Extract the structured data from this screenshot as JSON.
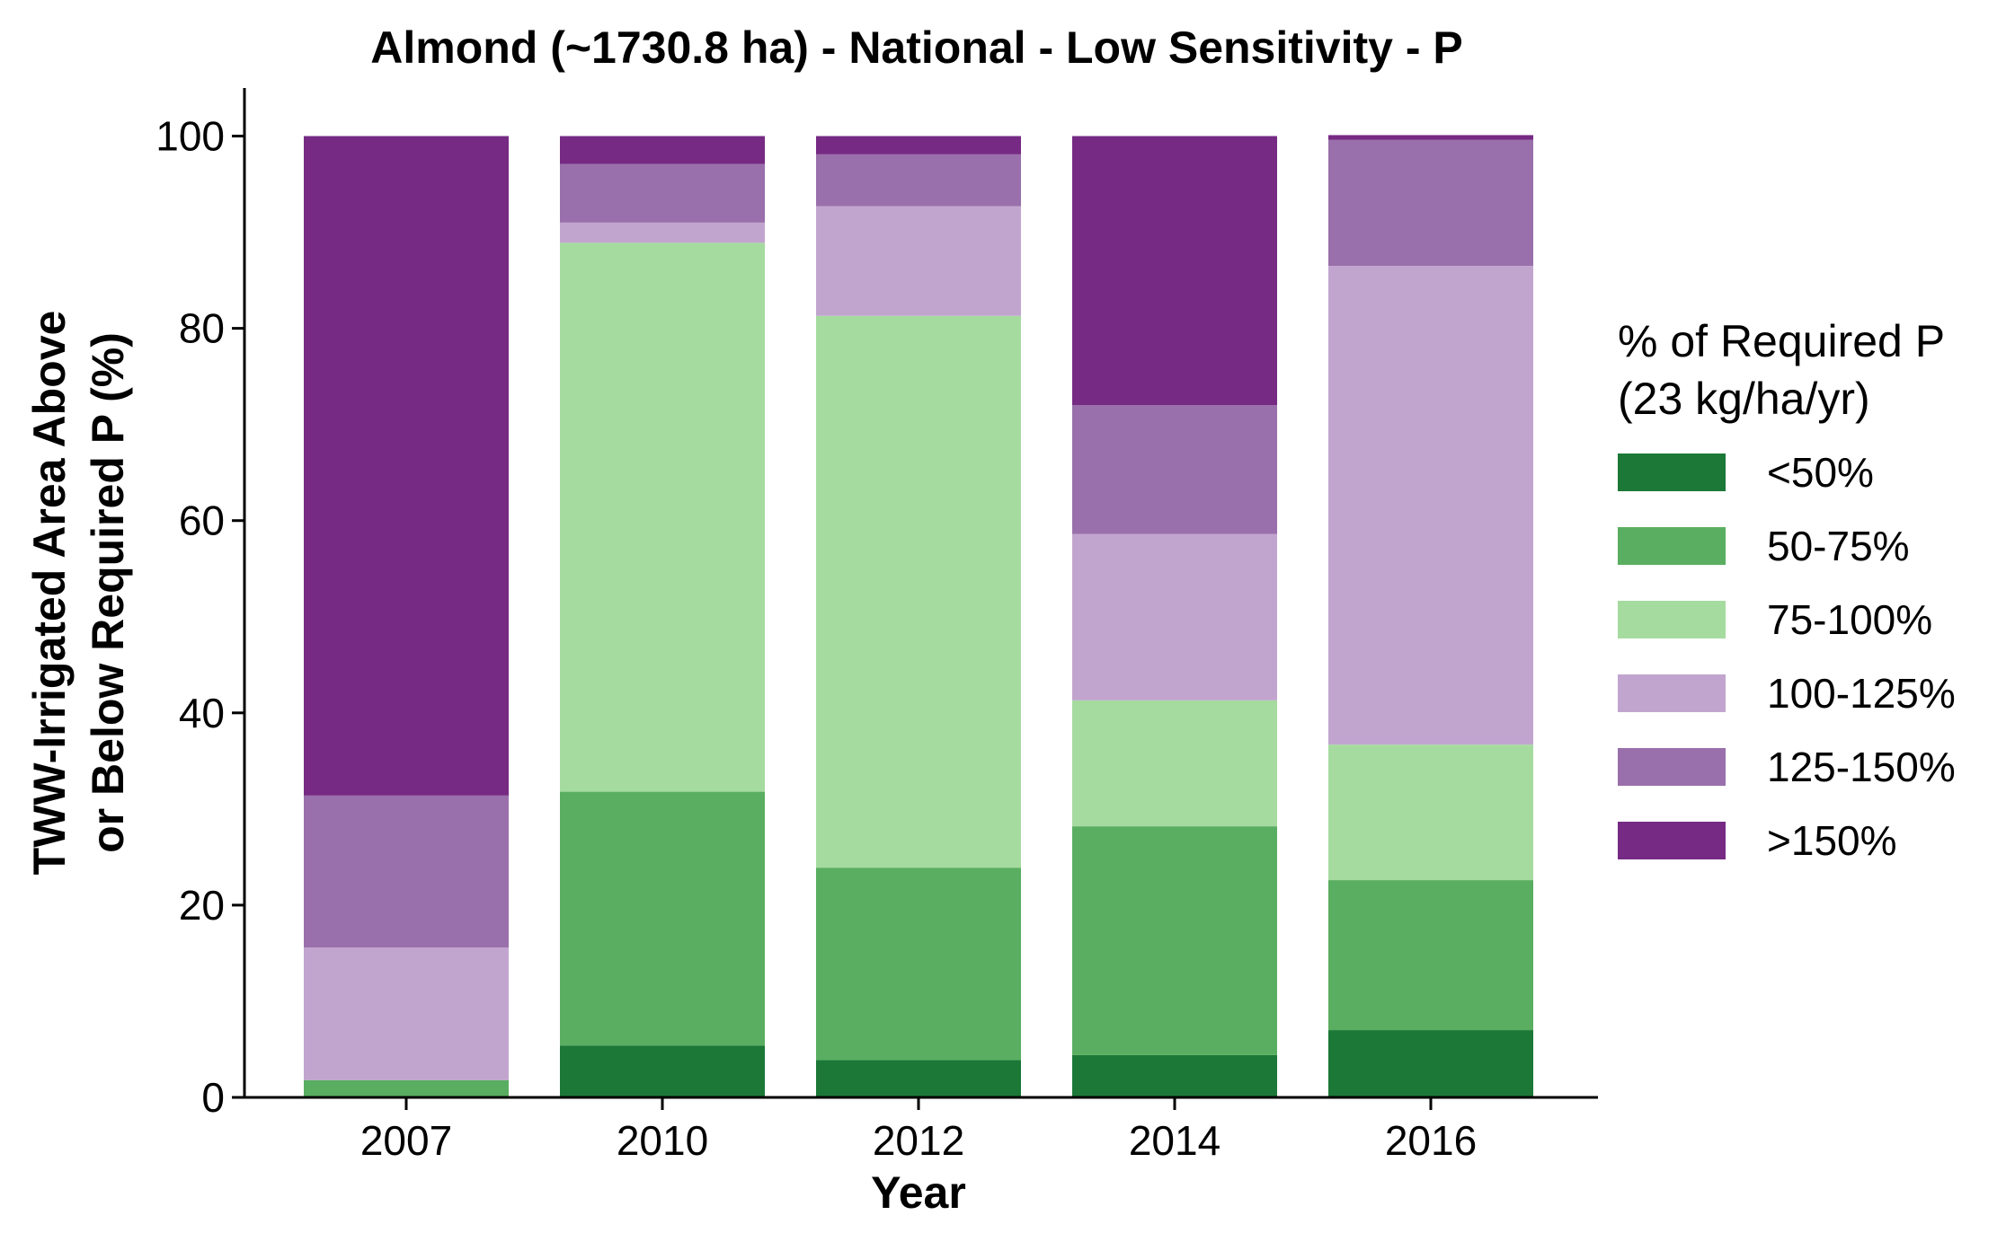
{
  "chart_data": {
    "type": "bar",
    "stacked": true,
    "title": "Almond (~1730.8 ha) - National - Low Sensitivity - P",
    "xlabel": "Year",
    "ylabel_line1": "TWW-Irrigated Area Above",
    "ylabel_line2": "or Below Required P (%)",
    "ylim": [
      0,
      105
    ],
    "yticks": [
      0,
      20,
      40,
      60,
      80,
      100
    ],
    "categories": [
      "2007",
      "2010",
      "2012",
      "2014",
      "2016"
    ],
    "legend": {
      "title_line1": "% of Required P",
      "title_line2": "(23 kg/ha/yr)",
      "position": "right"
    },
    "series": [
      {
        "name": "<50%",
        "color": "#1b7837",
        "values": [
          0,
          5.4,
          3.9,
          4.4,
          7.0
        ]
      },
      {
        "name": "50-75%",
        "color": "#5aae61",
        "values": [
          1.8,
          26.4,
          20.0,
          23.8,
          15.6
        ]
      },
      {
        "name": "75-100%",
        "color": "#a6dba0",
        "values": [
          0,
          57.1,
          57.4,
          13.1,
          14.1
        ]
      },
      {
        "name": "100-125%",
        "color": "#c2a5cf",
        "values": [
          13.8,
          2.1,
          11.4,
          17.3,
          49.8
        ]
      },
      {
        "name": "125-150%",
        "color": "#9970ab",
        "values": [
          15.8,
          6.1,
          5.4,
          13.4,
          13.1
        ]
      },
      {
        "name": ">150%",
        "color": "#762a83",
        "values": [
          68.6,
          2.9,
          1.9,
          28.0,
          0.5
        ]
      }
    ],
    "grid": false
  }
}
